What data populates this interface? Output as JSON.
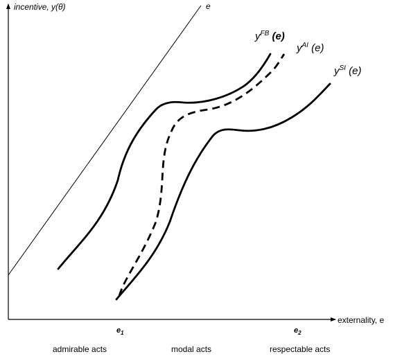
{
  "axes": {
    "y_label_main": "incentive, ",
    "y_label_arg": "y(θ)",
    "x_label": "externality, e"
  },
  "reference_line": {
    "label": "e"
  },
  "curves": {
    "first_best": {
      "base": "y",
      "sup": "FB",
      "tail": " (e)",
      "style": "solid"
    },
    "ai": {
      "base": "y",
      "sup": "AI",
      "tail": " (e)",
      "style": "dashed"
    },
    "second_best": {
      "base": "y",
      "sup": "SI",
      "tail": " (e)",
      "style": "solid"
    }
  },
  "ticks": {
    "e1": {
      "base": "e",
      "sub": "1"
    },
    "e2": {
      "base": "e",
      "sub": "2"
    }
  },
  "regions": {
    "admirable": "admirable acts",
    "modal": "modal acts",
    "respectable": "respectable acts"
  }
}
